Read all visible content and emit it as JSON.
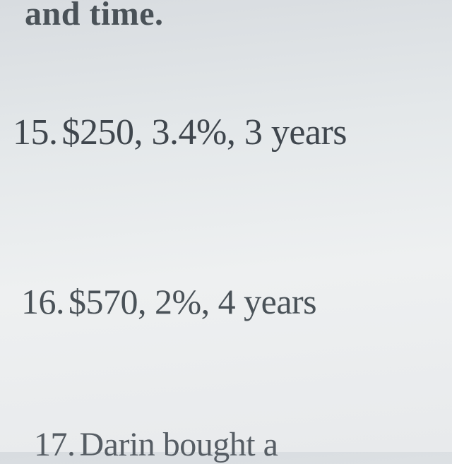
{
  "page": {
    "background_color": "#e4e8ea",
    "text_color": "#3f464d",
    "font_family": "Times New Roman",
    "header_fontsize": 48,
    "problem_fontsize": 52
  },
  "header": {
    "fragment_text": "and time."
  },
  "problems": [
    {
      "number": "15.",
      "principal": "$250",
      "rate": "3.4%",
      "time": "3 years",
      "full_text": "$250, 3.4%, 3 years"
    },
    {
      "number": "16.",
      "principal": "$570",
      "rate": "2%",
      "time": "4 years",
      "full_text": "$570, 2%, 4 years"
    },
    {
      "number": "17.",
      "fragment_text": "Darin bought a"
    }
  ]
}
